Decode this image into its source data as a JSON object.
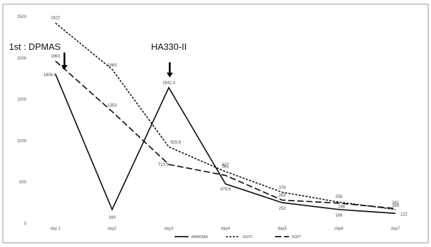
{
  "chart_data": {
    "type": "line",
    "categories": [
      "day 1",
      "day2",
      "day3",
      "day4",
      "day5",
      "day6",
      "day7"
    ],
    "ylim": [
      0,
      2500
    ],
    "yticks": [
      0,
      500,
      1000,
      1500,
      2000,
      2500
    ],
    "grid": false,
    "legend_position": "bottom",
    "series": [
      {
        "name": "AMMONIA",
        "style": "solid",
        "values": [
          1806.9,
          169,
          1641.4,
          478.6,
          252,
          169,
          122
        ],
        "labels": [
          "1806.9",
          "169",
          "1641.4",
          "478.6",
          "252",
          "169",
          "122"
        ]
      },
      {
        "name": "SGOT",
        "style": "short-dash",
        "values": [
          2422,
          1863,
          925.6,
          627,
          378,
          258,
          169
        ],
        "labels": [
          "2422",
          "1863",
          "925.6",
          "627",
          "378",
          "258",
          "169"
        ]
      },
      {
        "name": "SGPT",
        "style": "long-dash",
        "values": [
          1963,
          1353,
          713.6,
          581,
          283,
          246,
          181
        ],
        "labels": [
          "1963",
          "1353",
          "713.6",
          "581",
          "283",
          "246",
          "181"
        ]
      }
    ],
    "annotations": [
      {
        "text": "1st : DPMAS",
        "category": "day 1"
      },
      {
        "text": "HA330-II",
        "category": "day3"
      }
    ]
  }
}
